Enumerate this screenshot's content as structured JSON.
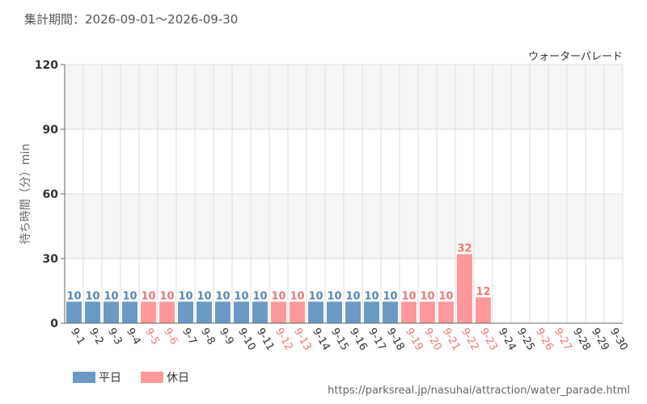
{
  "header": {
    "period_label": "集計期間：2026-09-01～2026-09-30",
    "attraction_name": "ウォーターパレード"
  },
  "footer": {
    "source_url": "https://parksreal.jp/nasuhai/attraction/water_parade.html"
  },
  "colors": {
    "weekday": "#6b9ac4",
    "holiday": "#ff9999",
    "weekday_text": "#333333",
    "holiday_text": "#ee7777",
    "weekday_value": "#5a86b0",
    "holiday_value": "#e77a7a",
    "band": "#f5f5f5",
    "grid": "#dddddd",
    "axis": "#666666"
  },
  "chart_data": {
    "type": "bar",
    "ylabel": "待ち時間（分）min",
    "ylim": [
      0,
      120
    ],
    "yticks": [
      0,
      30,
      60,
      90,
      120
    ],
    "grid": true,
    "legend": {
      "position": "bottom-left",
      "entries": [
        {
          "name": "平日",
          "kind": "weekday"
        },
        {
          "name": "休日",
          "kind": "holiday"
        }
      ]
    },
    "categories": [
      "9-1",
      "9-2",
      "9-3",
      "9-4",
      "9-5",
      "9-6",
      "9-7",
      "9-8",
      "9-9",
      "9-10",
      "9-11",
      "9-12",
      "9-13",
      "9-14",
      "9-15",
      "9-16",
      "9-17",
      "9-18",
      "9-19",
      "9-20",
      "9-21",
      "9-22",
      "9-23",
      "9-24",
      "9-25",
      "9-26",
      "9-27",
      "9-28",
      "9-29",
      "9-30"
    ],
    "values": [
      10,
      10,
      10,
      10,
      10,
      10,
      10,
      10,
      10,
      10,
      10,
      10,
      10,
      10,
      10,
      10,
      10,
      10,
      10,
      10,
      10,
      32,
      12,
      null,
      null,
      null,
      null,
      null,
      null,
      null
    ],
    "holidays": [
      false,
      false,
      false,
      false,
      true,
      true,
      false,
      false,
      false,
      false,
      false,
      true,
      true,
      false,
      false,
      false,
      false,
      false,
      true,
      true,
      true,
      true,
      true,
      false,
      false,
      true,
      true,
      false,
      false,
      false
    ]
  }
}
